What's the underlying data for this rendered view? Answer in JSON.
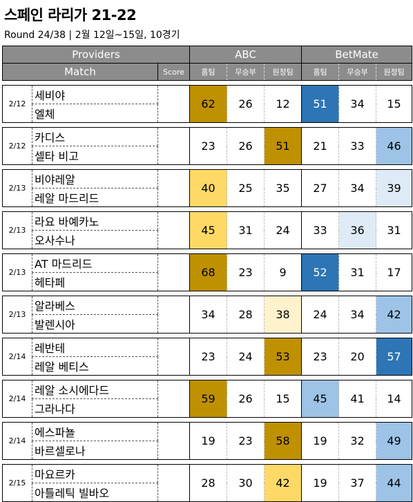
{
  "title": "스페인 라리가 21-22",
  "subtitle": "Round 24/38 | 2월 12일~15일, 10경기",
  "header": {
    "providers": "Providers",
    "match": "Match",
    "score": "Score",
    "abc": "ABC",
    "betmate": "BetMate",
    "home": "홈팀",
    "draw": "무승부",
    "away": "원정팀"
  },
  "colors": {
    "gold_dark": "#bf9000",
    "gold_mid": "#ffd966",
    "gold_light": "#fff2cc",
    "blue_dark": "#2e75b6",
    "blue_mid": "#9dc3e6",
    "blue_light": "#deebf7",
    "header_gray": "#8c8c8c"
  },
  "matches": [
    {
      "date": "2/12",
      "home": "세비야",
      "away": "엘체",
      "abc": [
        "62",
        "26",
        "12"
      ],
      "bm": [
        "51",
        "34",
        "15"
      ],
      "abc_colors": [
        "gold_dark",
        "",
        ""
      ],
      "bm_colors": [
        "blue_dark",
        "",
        ""
      ]
    },
    {
      "date": "2/12",
      "home": "카디스",
      "away": "셀타 비고",
      "abc": [
        "23",
        "26",
        "51"
      ],
      "bm": [
        "21",
        "33",
        "46"
      ],
      "abc_colors": [
        "",
        "",
        "gold_dark"
      ],
      "bm_colors": [
        "",
        "",
        "blue_mid"
      ]
    },
    {
      "date": "2/13",
      "home": "비야레알",
      "away": "레알 마드리드",
      "abc": [
        "40",
        "25",
        "35"
      ],
      "bm": [
        "27",
        "34",
        "39"
      ],
      "abc_colors": [
        "gold_mid",
        "",
        ""
      ],
      "bm_colors": [
        "",
        "",
        "blue_light"
      ]
    },
    {
      "date": "2/13",
      "home": "라요 바예카노",
      "away": "오사수나",
      "abc": [
        "45",
        "31",
        "24"
      ],
      "bm": [
        "33",
        "36",
        "31"
      ],
      "abc_colors": [
        "gold_mid",
        "",
        ""
      ],
      "bm_colors": [
        "",
        "blue_light",
        ""
      ]
    },
    {
      "date": "2/13",
      "home": "AT 마드리드",
      "away": "헤타페",
      "abc": [
        "68",
        "23",
        "9"
      ],
      "bm": [
        "52",
        "31",
        "17"
      ],
      "abc_colors": [
        "gold_dark",
        "",
        ""
      ],
      "bm_colors": [
        "blue_dark",
        "",
        ""
      ]
    },
    {
      "date": "2/13",
      "home": "알라베스",
      "away": "발렌시아",
      "abc": [
        "34",
        "28",
        "38"
      ],
      "bm": [
        "24",
        "34",
        "42"
      ],
      "abc_colors": [
        "",
        "",
        "gold_light"
      ],
      "bm_colors": [
        "",
        "",
        "blue_mid"
      ]
    },
    {
      "date": "2/14",
      "home": "레반테",
      "away": "레알 베티스",
      "abc": [
        "23",
        "24",
        "53"
      ],
      "bm": [
        "23",
        "20",
        "57"
      ],
      "abc_colors": [
        "",
        "",
        "gold_dark"
      ],
      "bm_colors": [
        "",
        "",
        "blue_dark"
      ]
    },
    {
      "date": "2/14",
      "home": "레알 소시에다드",
      "away": "그라나다",
      "abc": [
        "59",
        "26",
        "15"
      ],
      "bm": [
        "45",
        "41",
        "14"
      ],
      "abc_colors": [
        "gold_dark",
        "",
        ""
      ],
      "bm_colors": [
        "blue_mid",
        "",
        ""
      ]
    },
    {
      "date": "2/14",
      "home": "에스파뇰",
      "away": "바르셀로나",
      "abc": [
        "19",
        "23",
        "58"
      ],
      "bm": [
        "19",
        "32",
        "49"
      ],
      "abc_colors": [
        "",
        "",
        "gold_dark"
      ],
      "bm_colors": [
        "",
        "",
        "blue_mid"
      ]
    },
    {
      "date": "2/15",
      "home": "마요르카",
      "away": "아틀레틱 빌바오",
      "abc": [
        "28",
        "30",
        "42"
      ],
      "bm": [
        "19",
        "37",
        "44"
      ],
      "abc_colors": [
        "",
        "",
        "gold_mid"
      ],
      "bm_colors": [
        "",
        "",
        "blue_mid"
      ]
    }
  ]
}
